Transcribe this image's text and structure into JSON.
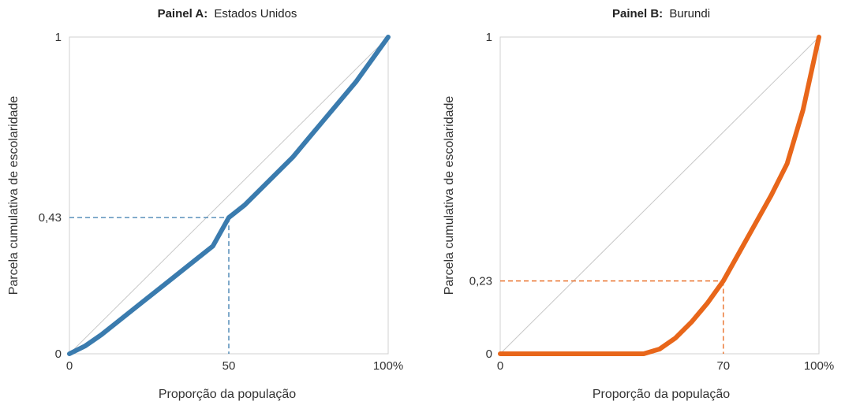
{
  "chart_data": [
    {
      "type": "line",
      "title_prefix": "Painel A:",
      "title": "Estados Unidos",
      "xlabel": "Proporção da população",
      "ylabel": "Parcela cumulativa de escolaridade",
      "xlim": [
        0,
        100
      ],
      "ylim": [
        0,
        1
      ],
      "x_ticks": [
        "0",
        "50",
        "100%"
      ],
      "x_tick_values": [
        0,
        50,
        100
      ],
      "y_ticks": [
        "0",
        "0,43",
        "1"
      ],
      "y_tick_values": [
        0,
        0.43,
        1
      ],
      "grid": false,
      "equality_line": true,
      "series": [
        {
          "color": "#3a7bae",
          "x": [
            0,
            5,
            10,
            15,
            20,
            25,
            30,
            35,
            40,
            45,
            50,
            55,
            60,
            65,
            70,
            75,
            80,
            85,
            90,
            95,
            100
          ],
          "y": [
            0,
            0.025,
            0.06,
            0.1,
            0.14,
            0.18,
            0.22,
            0.26,
            0.3,
            0.34,
            0.43,
            0.47,
            0.52,
            0.57,
            0.62,
            0.68,
            0.74,
            0.8,
            0.86,
            0.93,
            1.0
          ]
        }
      ],
      "reference": {
        "x": 50,
        "y": 0.43,
        "color": "#3a7bae"
      }
    },
    {
      "type": "line",
      "title_prefix": "Painel B:",
      "title": "Burundi",
      "xlabel": "Proporção da população",
      "ylabel": "Parcela cumulativa de escolaridade",
      "xlim": [
        0,
        100
      ],
      "ylim": [
        0,
        1
      ],
      "x_ticks": [
        "0",
        "70",
        "100%"
      ],
      "x_tick_values": [
        0,
        70,
        100
      ],
      "y_ticks": [
        "0",
        "0,23",
        "1"
      ],
      "y_tick_values": [
        0,
        0.23,
        1
      ],
      "grid": false,
      "equality_line": true,
      "series": [
        {
          "color": "#e8661a",
          "x": [
            0,
            10,
            20,
            30,
            40,
            45,
            50,
            55,
            60,
            65,
            70,
            75,
            80,
            85,
            90,
            95,
            100
          ],
          "y": [
            0,
            0,
            0,
            0,
            0,
            0,
            0.015,
            0.05,
            0.1,
            0.16,
            0.23,
            0.32,
            0.41,
            0.5,
            0.6,
            0.77,
            1.0
          ]
        }
      ],
      "reference": {
        "x": 70,
        "y": 0.23,
        "color": "#e8661a"
      }
    }
  ]
}
